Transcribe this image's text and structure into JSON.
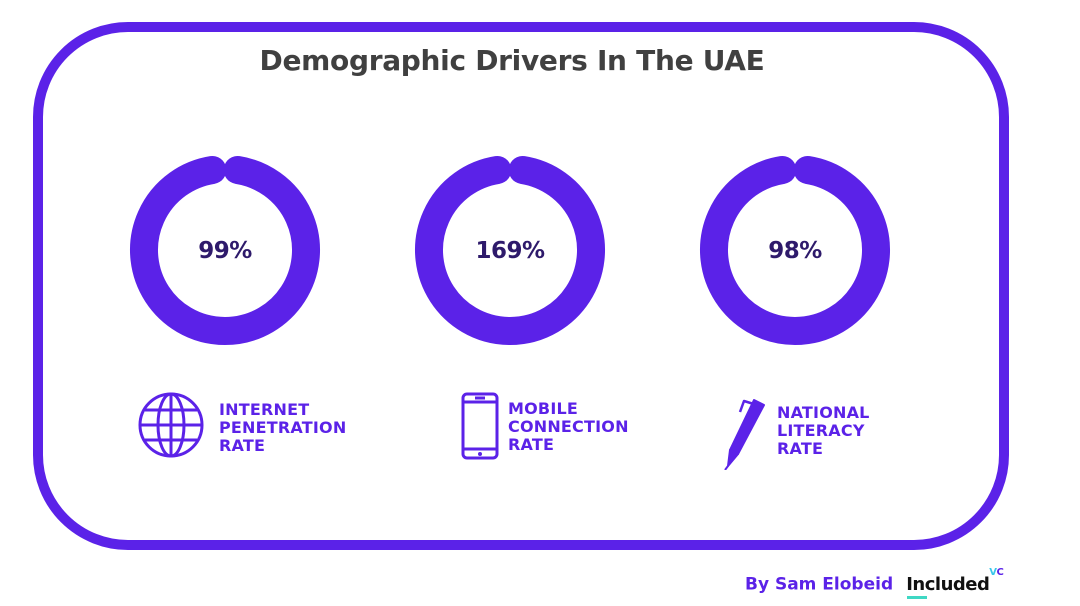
{
  "title": "Demographic Drivers In The UAE",
  "colors": {
    "accent": "#5b22e8",
    "title": "#404040",
    "value_text": "#2e1a6b",
    "brand_teal": "#3fd8c4"
  },
  "chart_data": {
    "type": "gauge",
    "title": "Demographic Drivers In The UAE",
    "series": [
      {
        "value_label": "99%",
        "value": 99,
        "label_lines": [
          "INTERNET",
          "PENETRATION",
          "RATE"
        ],
        "icon": "globe-icon"
      },
      {
        "value_label": "169%",
        "value": 169,
        "label_lines": [
          "MOBILE",
          "CONNECTION",
          "RATE"
        ],
        "icon": "smartphone-icon"
      },
      {
        "value_label": "98%",
        "value": 98,
        "label_lines": [
          "NATIONAL",
          "LITERACY",
          "RATE"
        ],
        "icon": "pen-icon"
      }
    ]
  },
  "footer": {
    "byline": "By Sam Elobeid",
    "brand": "Included",
    "brand_suffix_v": "V",
    "brand_suffix_c": "C"
  }
}
